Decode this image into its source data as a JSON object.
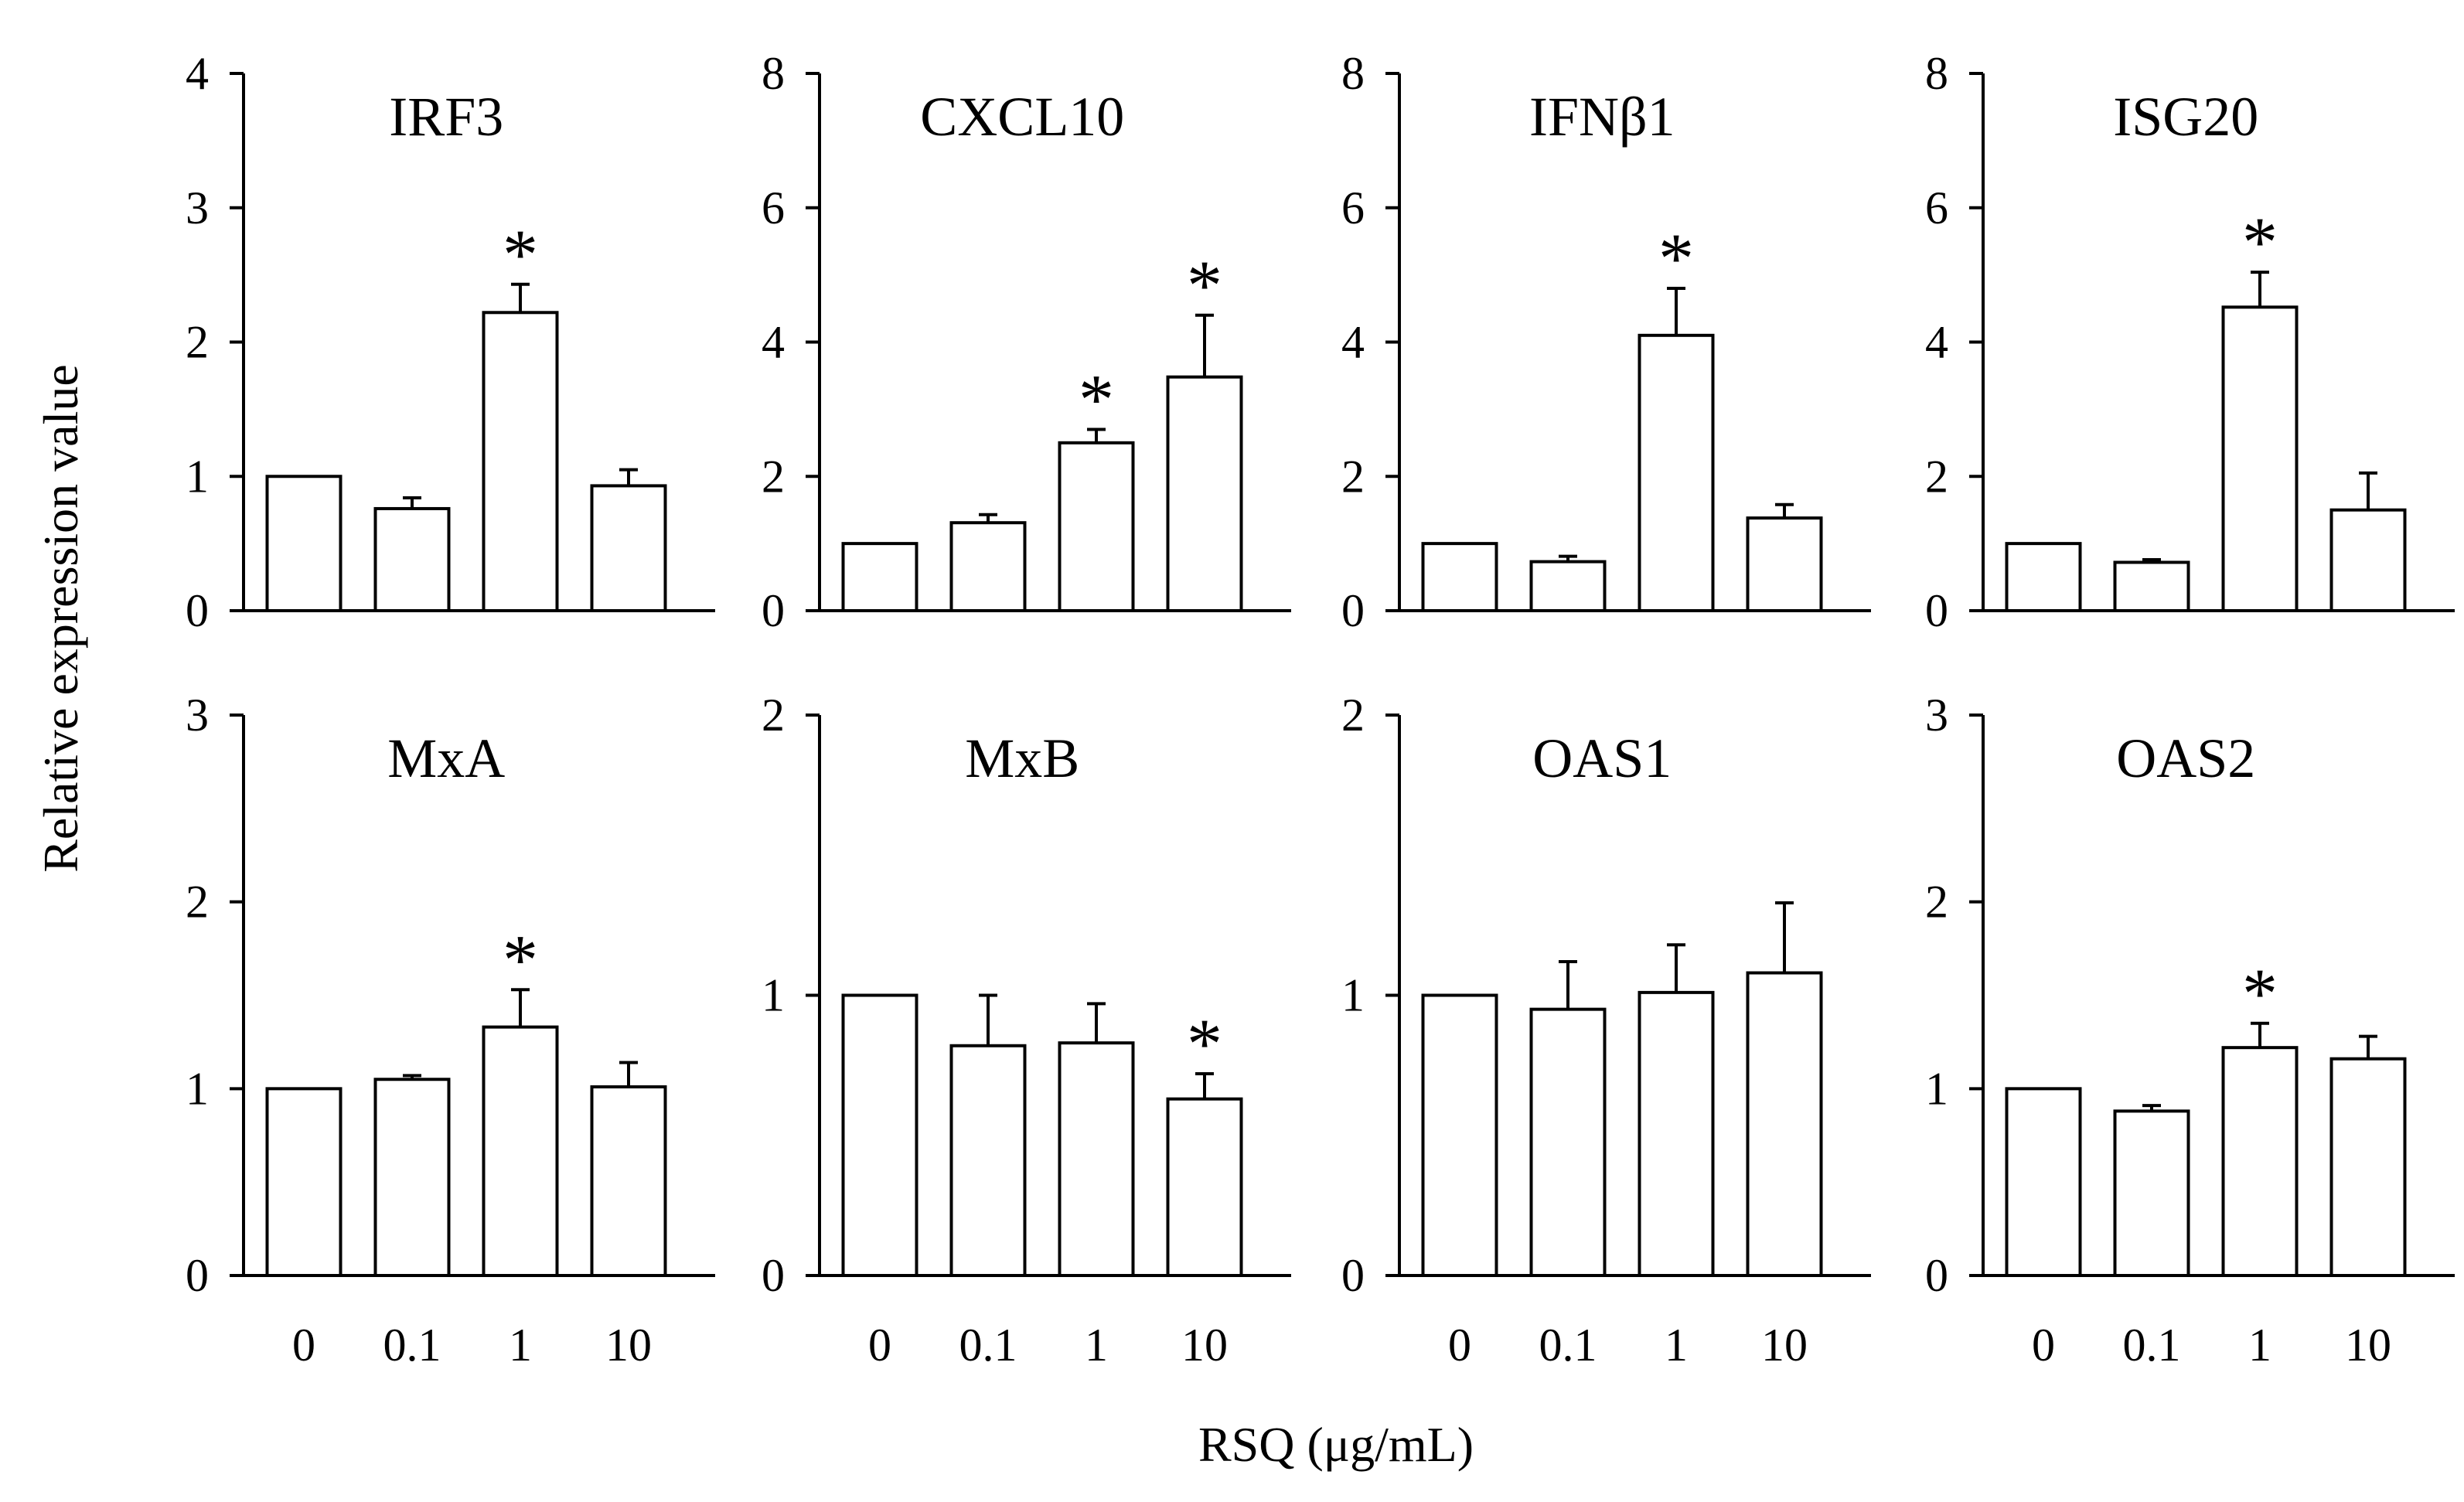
{
  "figure": {
    "y_axis_label": "Relative expression value",
    "x_axis_label": "RSQ (μg/mL)"
  },
  "chart_data": [
    {
      "type": "bar",
      "title": "IRF3",
      "categories": [
        "0",
        "0.1",
        "1",
        "10"
      ],
      "values": [
        1.0,
        0.76,
        2.22,
        0.93
      ],
      "errors": [
        0,
        0.08,
        0.21,
        0.12
      ],
      "significance": [
        "",
        "",
        "*",
        ""
      ],
      "ylim": [
        0,
        4
      ],
      "yticks": [
        0,
        1,
        2,
        3,
        4
      ],
      "xlabel": "RSQ (μg/mL)",
      "ylabel": "Relative expression value"
    },
    {
      "type": "bar",
      "title": "CXCL10",
      "categories": [
        "0",
        "0.1",
        "1",
        "10"
      ],
      "values": [
        1.0,
        1.31,
        2.5,
        3.48
      ],
      "errors": [
        0,
        0.12,
        0.2,
        0.92
      ],
      "significance": [
        "",
        "",
        "*",
        "*"
      ],
      "ylim": [
        0,
        8
      ],
      "yticks": [
        0,
        2,
        4,
        6,
        8
      ],
      "xlabel": "RSQ (μg/mL)",
      "ylabel": "Relative expression value"
    },
    {
      "type": "bar",
      "title": "IFNβ1",
      "categories": [
        "0",
        "0.1",
        "1",
        "10"
      ],
      "values": [
        1.0,
        0.73,
        4.1,
        1.38
      ],
      "errors": [
        0,
        0.08,
        0.7,
        0.2
      ],
      "significance": [
        "",
        "",
        "*",
        ""
      ],
      "ylim": [
        0,
        8
      ],
      "yticks": [
        0,
        2,
        4,
        6,
        8
      ],
      "xlabel": "RSQ (μg/mL)",
      "ylabel": "Relative expression value"
    },
    {
      "type": "bar",
      "title": "ISG20",
      "categories": [
        "0",
        "0.1",
        "1",
        "10"
      ],
      "values": [
        1.0,
        0.72,
        4.52,
        1.5
      ],
      "errors": [
        0,
        0.04,
        0.52,
        0.55
      ],
      "significance": [
        "",
        "",
        "*",
        ""
      ],
      "ylim": [
        0,
        8
      ],
      "yticks": [
        0,
        2,
        4,
        6,
        8
      ],
      "xlabel": "RSQ (μg/mL)",
      "ylabel": "Relative expression value"
    },
    {
      "type": "bar",
      "title": "MxA",
      "categories": [
        "0",
        "0.1",
        "1",
        "10"
      ],
      "values": [
        1.0,
        1.05,
        1.33,
        1.01
      ],
      "errors": [
        0,
        0.02,
        0.2,
        0.13
      ],
      "significance": [
        "",
        "",
        "*",
        ""
      ],
      "ylim": [
        0,
        3
      ],
      "yticks": [
        0,
        1,
        2,
        3
      ],
      "xlabel": "RSQ (μg/mL)",
      "ylabel": "Relative expression value"
    },
    {
      "type": "bar",
      "title": "MxB",
      "categories": [
        "0",
        "0.1",
        "1",
        "10"
      ],
      "values": [
        1.0,
        0.82,
        0.83,
        0.63
      ],
      "errors": [
        0,
        0.18,
        0.14,
        0.09
      ],
      "significance": [
        "",
        "",
        "",
        "*"
      ],
      "ylim": [
        0,
        2
      ],
      "yticks": [
        0,
        1,
        2
      ],
      "xlabel": "RSQ (μg/mL)",
      "ylabel": "Relative expression value"
    },
    {
      "type": "bar",
      "title": "OAS1",
      "categories": [
        "0",
        "0.1",
        "1",
        "10"
      ],
      "values": [
        1.0,
        0.95,
        1.01,
        1.08
      ],
      "errors": [
        0,
        0.17,
        0.17,
        0.25
      ],
      "significance": [
        "",
        "",
        "",
        ""
      ],
      "ylim": [
        0,
        2
      ],
      "yticks": [
        0,
        1,
        2
      ],
      "xlabel": "RSQ (μg/mL)",
      "ylabel": "Relative expression value"
    },
    {
      "type": "bar",
      "title": "OAS2",
      "categories": [
        "0",
        "0.1",
        "1",
        "10"
      ],
      "values": [
        1.0,
        0.88,
        1.22,
        1.16
      ],
      "errors": [
        0,
        0.03,
        0.13,
        0.12
      ],
      "significance": [
        "",
        "",
        "*",
        ""
      ],
      "ylim": [
        0,
        3
      ],
      "yticks": [
        0,
        1,
        2,
        3
      ],
      "xlabel": "RSQ (μg/mL)",
      "ylabel": "Relative expression value"
    }
  ]
}
